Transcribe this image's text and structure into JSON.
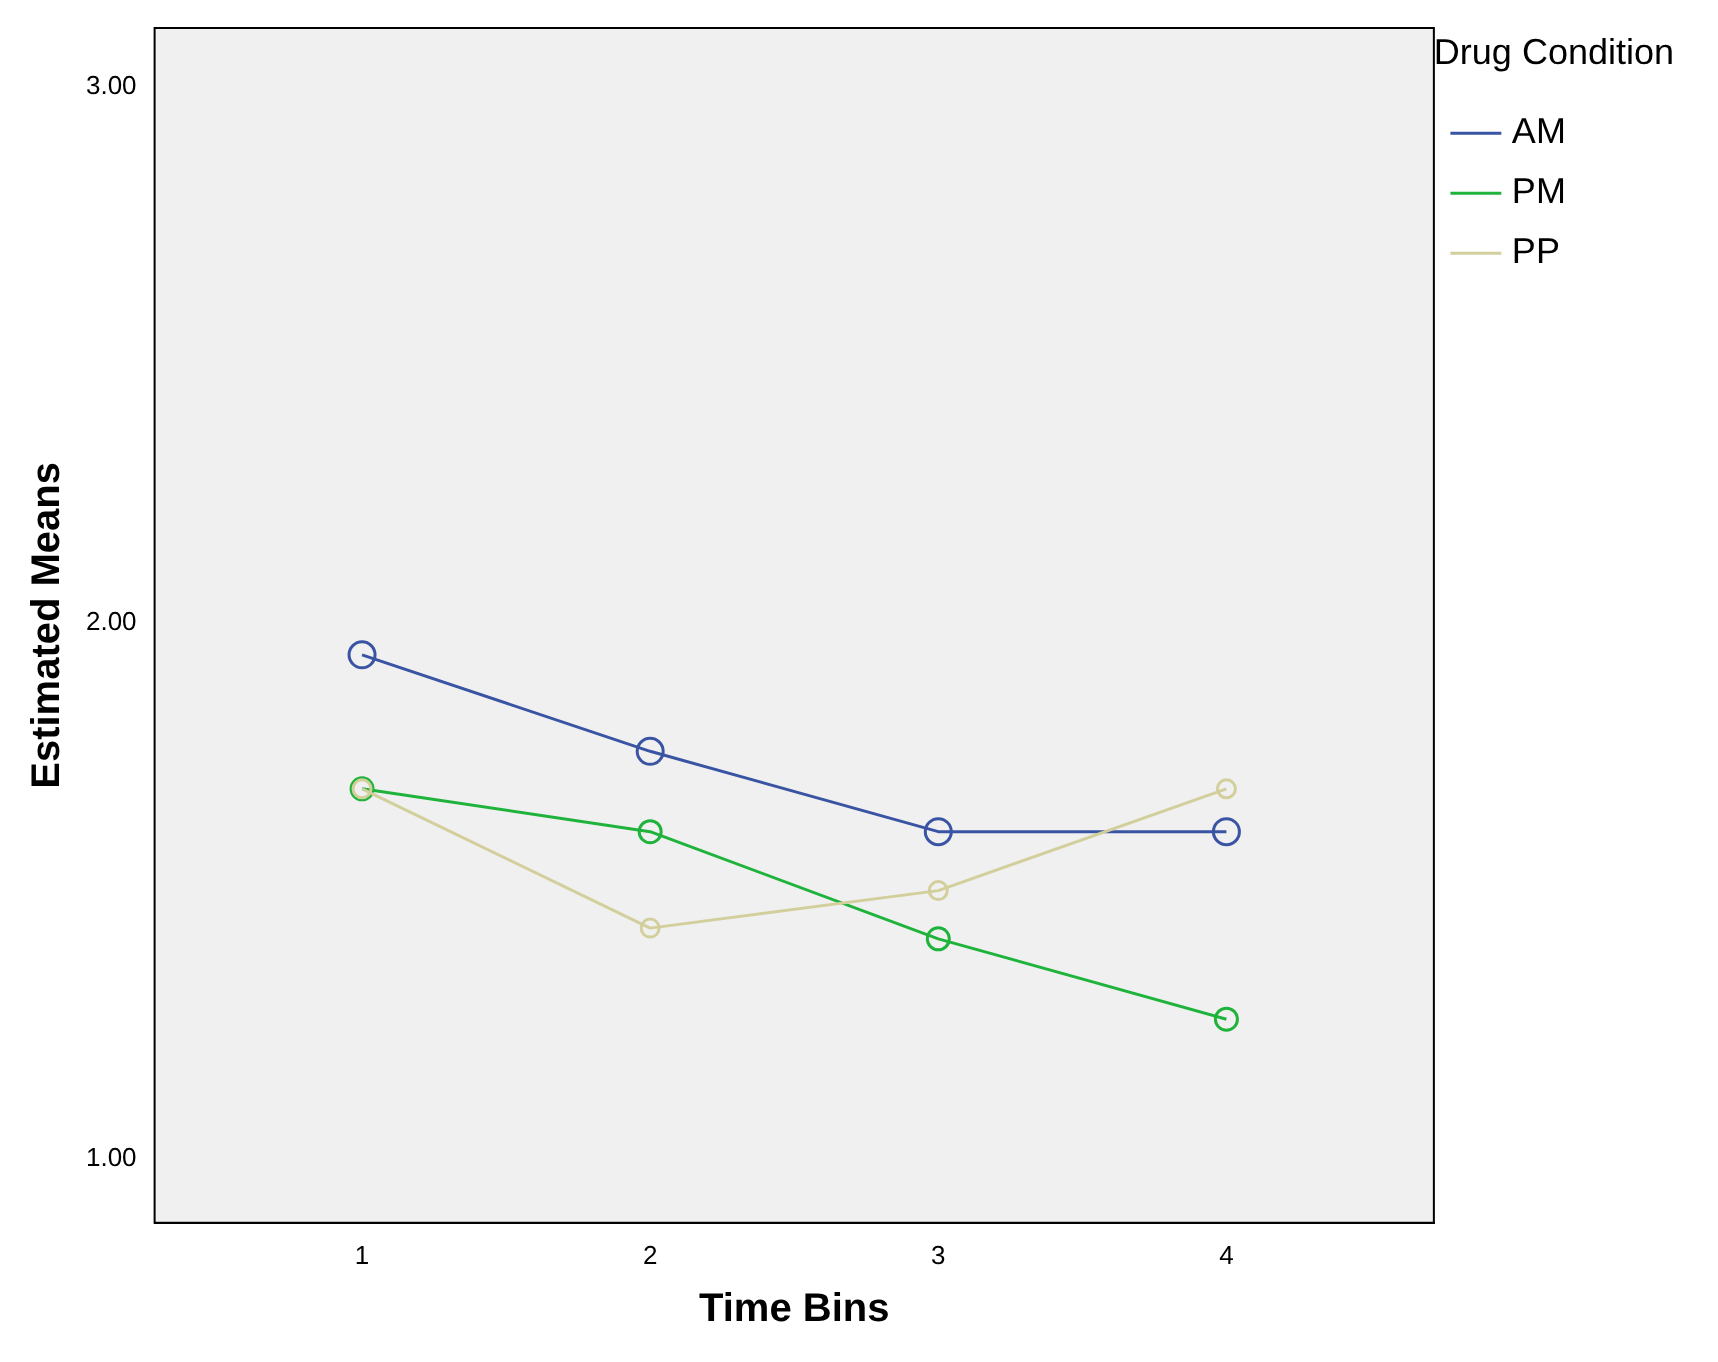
{
  "chart_data": {
    "type": "line",
    "xlabel": "Time Bins",
    "ylabel": "Estimated Means",
    "legend_title": "Drug Condition",
    "legend": "top right",
    "marker": "circle",
    "line_style": "solid",
    "grid": false,
    "x": [
      1,
      2,
      3,
      4
    ],
    "xlim": [
      0.28,
      4.72
    ],
    "xticks": [
      1,
      2,
      3,
      4
    ],
    "ylim": [
      0.88,
      3.11
    ],
    "yticks": [
      {
        "value": 1,
        "label": "1.00"
      },
      {
        "value": 2,
        "label": "2.00"
      },
      {
        "value": 3,
        "label": "3.00"
      }
    ],
    "series": [
      {
        "name": "AM",
        "color": "#3a54a4",
        "values": [
          1.94,
          1.76,
          1.61,
          1.61
        ]
      },
      {
        "name": "PM",
        "color": "#1fb33c",
        "values": [
          1.69,
          1.61,
          1.41,
          1.26
        ]
      },
      {
        "name": "PP",
        "color": "#d3cf9c",
        "values": [
          1.69,
          1.43,
          1.5,
          1.69
        ]
      }
    ]
  }
}
